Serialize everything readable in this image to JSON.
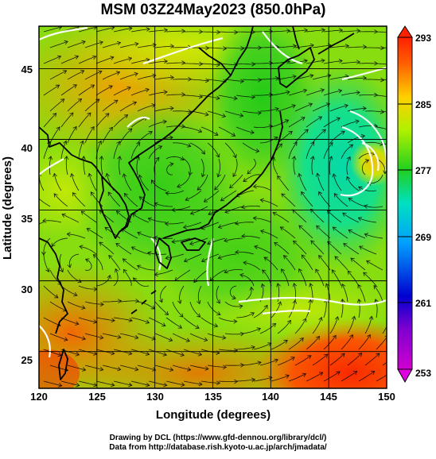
{
  "title": "MSM 03Z24May2023 (850.0hPa)",
  "xlabel": "Longitude (degrees)",
  "ylabel": "Latitude  (degrees)",
  "xticks": [
    "120",
    "125",
    "130",
    "135",
    "140",
    "145",
    "150"
  ],
  "yticks": [
    "45",
    "40",
    "35",
    "30",
    "25"
  ],
  "colorbar_ticks": [
    "293",
    "285",
    "277",
    "269",
    "261",
    "253"
  ],
  "credits": {
    "line1": "Drawing by DCL (https://www.gfd-dennou.org/library/dcl/)",
    "line2": "Data from http://database.rish.kyoto-u.ac.jp/arch/jmadata/"
  },
  "chart_data": {
    "type": "heatmap",
    "xlim": [
      120,
      150
    ],
    "ylim": [
      22.4,
      48
    ],
    "colorbar_range": [
      253,
      293
    ],
    "colormap": [
      "#e000e0",
      "#0000d0",
      "#00a0ff",
      "#00e0a0",
      "#20d040",
      "#c8f000",
      "#ff8000",
      "#ff2000"
    ],
    "grid": true,
    "overlay": "wind streamlines"
  }
}
